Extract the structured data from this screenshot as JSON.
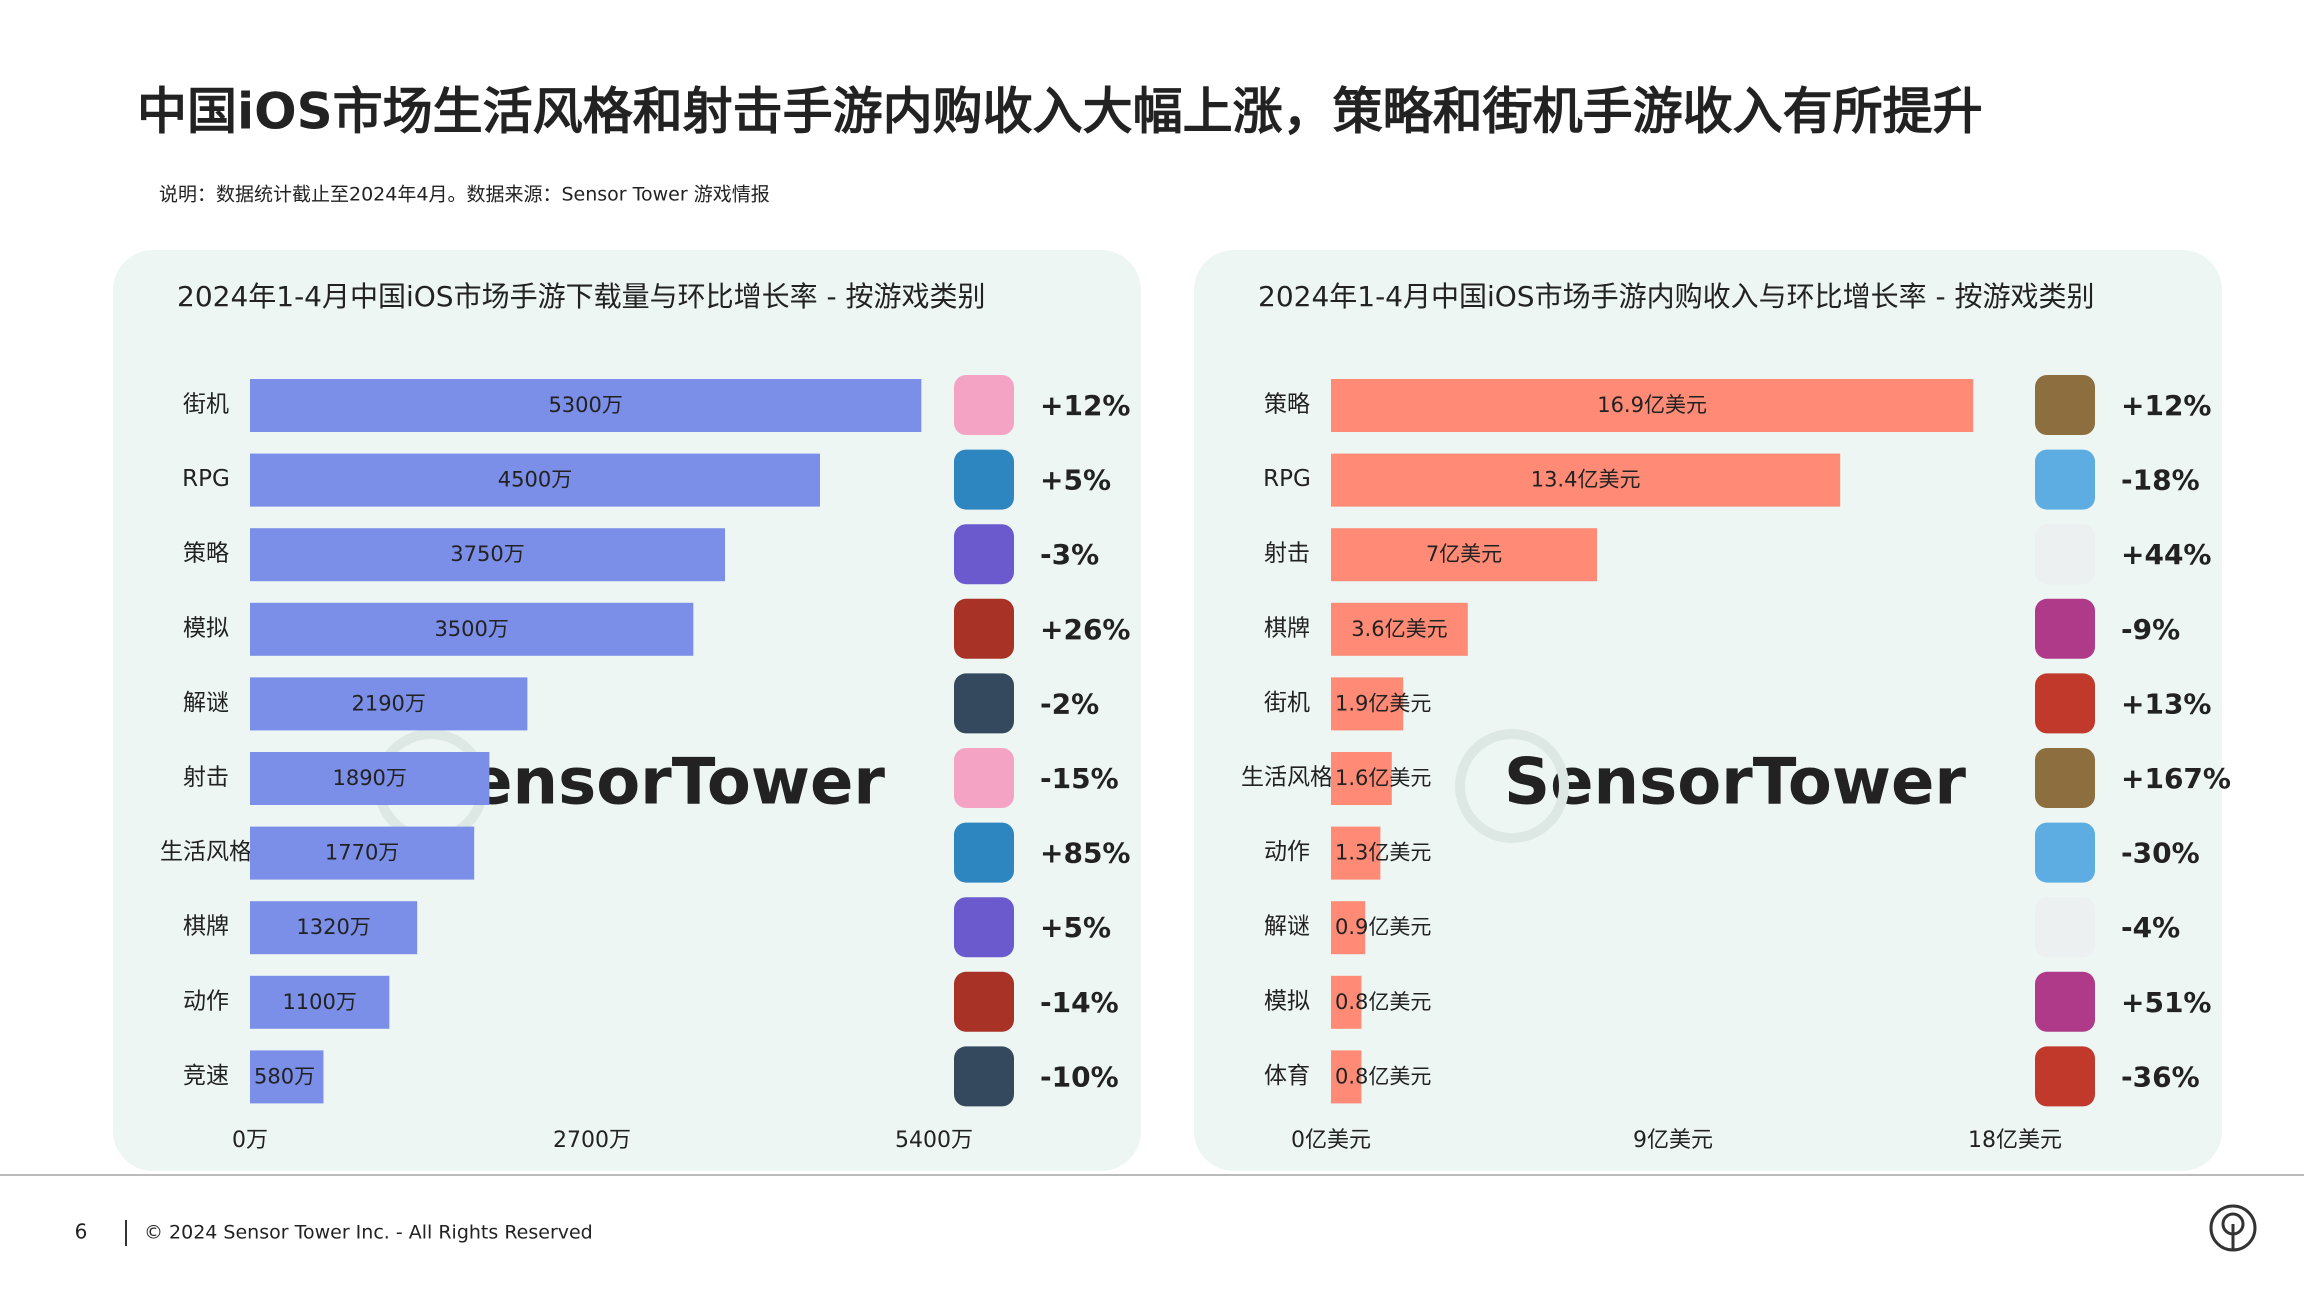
{
  "title": "中国iOS市场生活风格和射击手游内购收入大幅上涨，策略和街机手游收入有所提升",
  "note": "说明：数据统计截止至2024年4月。数据来源：Sensor Tower 游戏情报",
  "footer": {
    "page": 6,
    "copyright": "© 2024 Sensor Tower Inc. - All Rights Reserved"
  },
  "chart_data": [
    {
      "type": "bar",
      "orientation": "horizontal",
      "title": "2024年1-4月中国iOS市场手游下载量与环比增长率 - 按游戏类别",
      "categories": [
        "街机",
        "RPG",
        "策略",
        "模拟",
        "解谜",
        "射击",
        "生活风格",
        "棋牌",
        "动作",
        "竞速"
      ],
      "values": [
        5300,
        4500,
        3750,
        3500,
        2190,
        1890,
        1770,
        1320,
        1100,
        580
      ],
      "value_labels": [
        "5300万",
        "4500万",
        "3750万",
        "3500万",
        "2190万",
        "1890万",
        "1770万",
        "1320万",
        "1100万",
        "580万"
      ],
      "color": "#7b8fe8",
      "xlim": [
        0,
        5400
      ],
      "xticks": [
        {
          "value": 0,
          "label": "0万"
        },
        {
          "value": 2700,
          "label": "2700万"
        },
        {
          "value": 5400,
          "label": "5400万"
        }
      ],
      "growth": {
        "values": [
          12,
          5,
          -3,
          26,
          -2,
          -15,
          85,
          5,
          -14,
          -10
        ],
        "value_labels": [
          "+12%",
          "+5%",
          "-3%",
          "+26%",
          "-2%",
          "-15%",
          "+85%",
          "+5%",
          "-14%",
          "-10%"
        ],
        "positive_color": "#e0127f",
        "negative_color": "#26a596"
      },
      "watermark": "SensorTower"
    },
    {
      "type": "bar",
      "orientation": "horizontal",
      "title": "2024年1-4月中国iOS市场手游内购收入与环比增长率 - 按游戏类别",
      "categories": [
        "策略",
        "RPG",
        "射击",
        "棋牌",
        "街机",
        "生活风格",
        "动作",
        "解谜",
        "模拟",
        "体育"
      ],
      "values": [
        16.9,
        13.4,
        7,
        3.6,
        1.9,
        1.6,
        1.3,
        0.9,
        0.8,
        0.8
      ],
      "value_labels": [
        "16.9亿美元",
        "13.4亿美元",
        "7亿美元",
        "3.6亿美元",
        "1.9亿美元",
        "1.6亿美元",
        "1.3亿美元",
        "0.9亿美元",
        "0.8亿美元",
        "0.8亿美元"
      ],
      "color": "#ff8a75",
      "xlim": [
        0,
        18
      ],
      "xticks": [
        {
          "value": 0,
          "label": "0亿美元"
        },
        {
          "value": 9,
          "label": "9亿美元"
        },
        {
          "value": 18,
          "label": "18亿美元"
        }
      ],
      "growth": {
        "values": [
          12,
          -18,
          44,
          -9,
          13,
          167,
          -30,
          -4,
          51,
          -36
        ],
        "value_labels": [
          "+12%",
          "-18%",
          "+44%",
          "-9%",
          "+13%",
          "+167%",
          "-30%",
          "-4%",
          "+51%",
          "-36%"
        ],
        "positive_color": "#e0127f",
        "negative_color": "#26a596"
      },
      "watermark": "SensorTower"
    }
  ]
}
